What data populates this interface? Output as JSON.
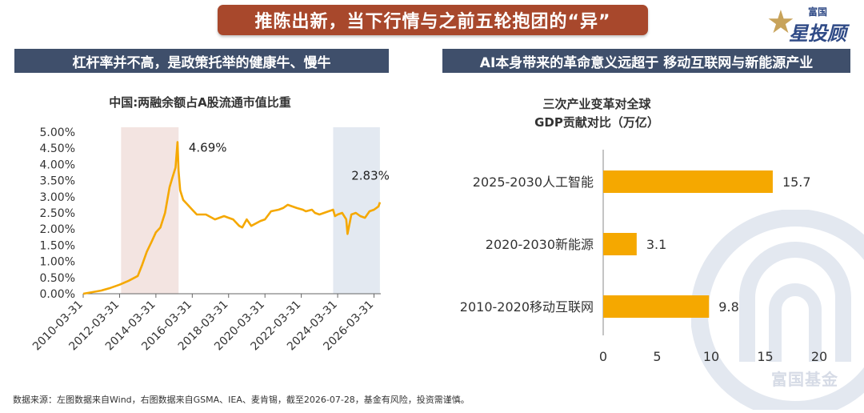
{
  "header": {
    "title": "推陈出新，当下行情与之前五轮抱团的“异”",
    "logo_small": "富国",
    "logo_big": "星投顾"
  },
  "left_section": {
    "label": "杠杆率并不高，是政策托举的健康牛、慢牛"
  },
  "right_section": {
    "label": "AI本身带来的革命意义远超于 移动互联网与新能源产业"
  },
  "footer": {
    "note": "数据来源：左图数据来自Wind，右图数据来自GSMA、IEA、麦肯锡，截至2026-07-28，基金有风险，投资需谨慎。"
  },
  "watermark": {
    "text": "富国基金"
  },
  "colors": {
    "accent": "#f5a800",
    "banner": "#a8482c",
    "section": "#3f4f6b",
    "shade_red": "#f3e4e1",
    "shade_blue": "#e3e9f1"
  },
  "chart_data": [
    {
      "type": "line",
      "title": "中国:两融余额占A股流通市值比重",
      "x_tick_labels": [
        "2010-03-31",
        "2012-03-31",
        "2014-03-31",
        "2016-03-31",
        "2018-03-31",
        "2020-03-31",
        "2022-03-31",
        "2024-03-31",
        "2026-03-31"
      ],
      "y_tick_labels": [
        "0.00%",
        "0.50%",
        "1.00%",
        "1.50%",
        "2.00%",
        "2.50%",
        "3.00%",
        "3.50%",
        "4.00%",
        "4.50%",
        "5.00%"
      ],
      "ylim": [
        0,
        5
      ],
      "xlim": [
        "2010-03-31",
        "2026-08-15"
      ],
      "shaded_periods": [
        [
          "2012-04-30",
          "2015-06-30"
        ],
        [
          "2023-12-31",
          "2026-07-28"
        ]
      ],
      "annotations": [
        {
          "text": "4.69%",
          "x": "2015-06-08",
          "y": 4.69
        },
        {
          "text": "2.83%",
          "x": "2026-07-28",
          "y": 2.83
        }
      ],
      "series": [
        {
          "x": [
            "2010-03-31",
            "2010-09-30",
            "2011-03-31",
            "2011-09-30",
            "2012-03-31",
            "2012-09-30",
            "2013-03-31",
            "2013-06-30",
            "2013-09-30",
            "2013-12-31",
            "2014-03-31",
            "2014-06-30",
            "2014-09-30",
            "2014-12-31",
            "2015-02-28",
            "2015-04-30",
            "2015-06-08",
            "2015-06-30",
            "2015-07-31",
            "2015-09-30",
            "2015-12-31",
            "2016-03-31",
            "2016-06-30",
            "2016-12-31",
            "2017-06-30",
            "2017-12-31",
            "2018-03-31",
            "2018-06-30",
            "2018-10-31",
            "2018-12-31",
            "2019-03-31",
            "2019-06-30",
            "2019-12-31",
            "2020-03-31",
            "2020-07-31",
            "2020-12-31",
            "2021-03-31",
            "2021-06-30",
            "2021-12-31",
            "2022-04-30",
            "2022-06-30",
            "2022-10-31",
            "2022-12-31",
            "2023-03-31",
            "2023-06-30",
            "2023-09-30",
            "2023-12-31",
            "2024-02-05",
            "2024-03-31",
            "2024-06-30",
            "2024-09-20",
            "2024-10-15",
            "2024-12-31",
            "2025-03-31",
            "2025-06-30",
            "2025-09-30",
            "2025-12-31",
            "2026-03-31",
            "2026-06-30",
            "2026-07-28"
          ],
          "values": [
            0.0,
            0.05,
            0.1,
            0.18,
            0.28,
            0.4,
            0.55,
            0.9,
            1.3,
            1.6,
            1.9,
            2.05,
            2.5,
            3.3,
            3.6,
            3.9,
            4.69,
            3.8,
            3.2,
            2.9,
            2.75,
            2.6,
            2.45,
            2.45,
            2.3,
            2.4,
            2.35,
            2.3,
            2.1,
            2.05,
            2.3,
            2.1,
            2.25,
            2.3,
            2.55,
            2.6,
            2.65,
            2.75,
            2.65,
            2.6,
            2.55,
            2.6,
            2.5,
            2.45,
            2.5,
            2.55,
            2.6,
            2.4,
            2.45,
            2.5,
            2.3,
            1.85,
            2.45,
            2.5,
            2.4,
            2.35,
            2.55,
            2.6,
            2.7,
            2.83
          ]
        }
      ]
    },
    {
      "type": "bar",
      "orientation": "horizontal",
      "title": "三次产业变革对全球\nGDP贡献对比（万亿）",
      "title_lines": [
        "三次产业变革对全球",
        "GDP贡献对比（万亿）"
      ],
      "categories": [
        "2025-2030人工智能",
        "2020-2030新能源",
        "2010-2020移动互联网"
      ],
      "values": [
        15.7,
        3.1,
        9.8
      ],
      "value_labels": [
        "15.7",
        "3.1",
        "9.8"
      ],
      "x_tick_labels": [
        "0",
        "5",
        "10",
        "15",
        "20"
      ],
      "xlim": [
        0,
        20
      ]
    }
  ]
}
